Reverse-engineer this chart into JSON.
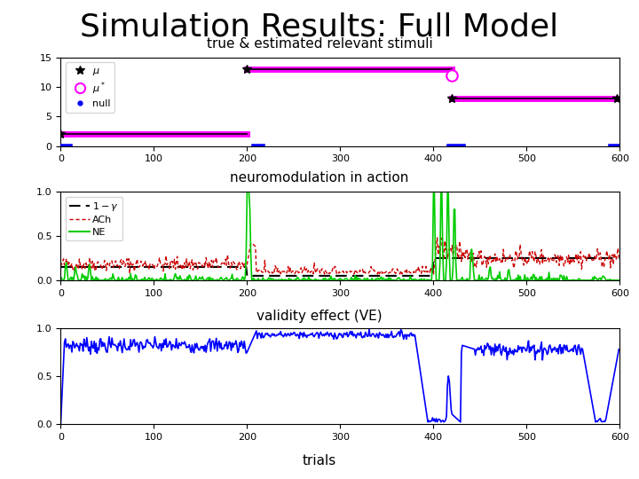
{
  "title": "Simulation Results: Full Model",
  "subtitle1": "true & estimated relevant stimuli",
  "subtitle2": "neuromodulation in action",
  "subtitle3": "validity effect (VE)",
  "xlabel": "trials",
  "xlim": [
    0,
    600
  ],
  "panel1_ylim": [
    0,
    15
  ],
  "panel2_ylim": [
    0,
    1
  ],
  "panel3_ylim": [
    0,
    1
  ],
  "panel1_yticks": [
    0,
    5,
    10,
    15
  ],
  "panel2_yticks": [
    0,
    0.5,
    1
  ],
  "panel3_yticks": [
    0,
    0.5,
    1
  ],
  "xticks": [
    0,
    100,
    200,
    300,
    400,
    500,
    600
  ],
  "magenta": "#FF00FF",
  "black": "#000000",
  "blue": "#0000FF",
  "green": "#00CC00",
  "red_dark": "#CC0000",
  "seed": 42,
  "title_fontsize": 26,
  "subtitle_fontsize": 11,
  "xlabel_fontsize": 11,
  "tick_fontsize": 8,
  "legend_fontsize": 8
}
